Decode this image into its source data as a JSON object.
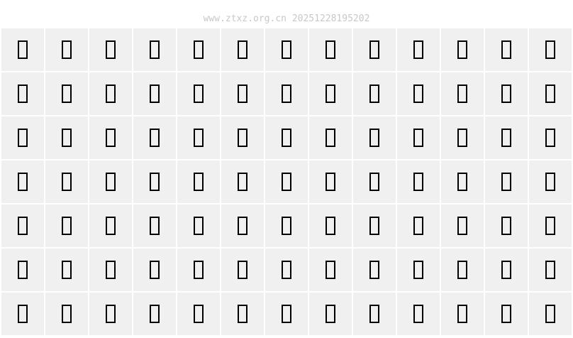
{
  "watermark": "www.ztxz.org.cn 20251228195202",
  "grid": {
    "rows": 7,
    "columns": 13,
    "cell_glyph": "missing-glyph-box",
    "cell_background": "#f0f0f0",
    "glyph_color": "#000000"
  }
}
